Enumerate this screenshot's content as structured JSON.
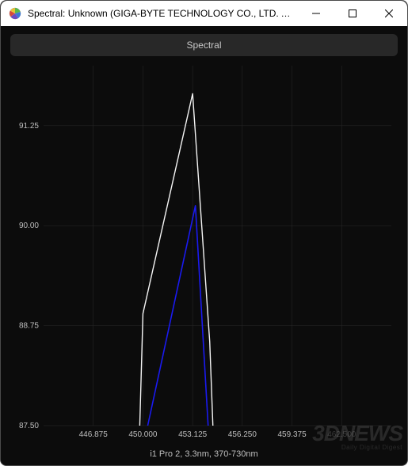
{
  "window": {
    "title": "Spectral: Unknown (GIGA-BYTE TECHNOLOGY CO., LTD. AORUS...",
    "icon_name": "app-icon"
  },
  "header": {
    "section_label": "Spectral"
  },
  "chart": {
    "type": "line",
    "background_color": "#0c0c0c",
    "grid_color": "#2a2a2a",
    "text_color": "#bfbfbf",
    "tick_fontsize": 10,
    "xlim": [
      443.75,
      465.625
    ],
    "ylim": [
      87.5,
      92.0
    ],
    "xticks": [
      446.875,
      450.0,
      453.125,
      456.25,
      459.375,
      462.5
    ],
    "xtick_labels": [
      "446.875",
      "450.000",
      "453.125",
      "456.250",
      "459.375",
      "462.500"
    ],
    "xtick_dim": [
      false,
      false,
      false,
      false,
      false,
      true
    ],
    "yticks": [
      87.5,
      88.75,
      90.0,
      91.25
    ],
    "ytick_labels": [
      "87.50",
      "88.75",
      "90.00",
      "91.25"
    ],
    "series": [
      {
        "name": "white",
        "color": "#f5f5f5",
        "width": 1.4,
        "points": [
          [
            449.8,
            87.5
          ],
          [
            450.0,
            88.9
          ],
          [
            453.125,
            91.65
          ],
          [
            454.2,
            88.55
          ],
          [
            454.4,
            87.5
          ]
        ]
      },
      {
        "name": "blue",
        "color": "#1a1af0",
        "width": 1.6,
        "points": [
          [
            450.3,
            87.5
          ],
          [
            453.3,
            90.25
          ],
          [
            454.1,
            87.5
          ]
        ]
      }
    ],
    "footer_label": "i1 Pro 2, 3.3nm, 370-730nm"
  },
  "watermark": {
    "line1": "3DNEWS",
    "line2": "Daily Digital Digest"
  }
}
